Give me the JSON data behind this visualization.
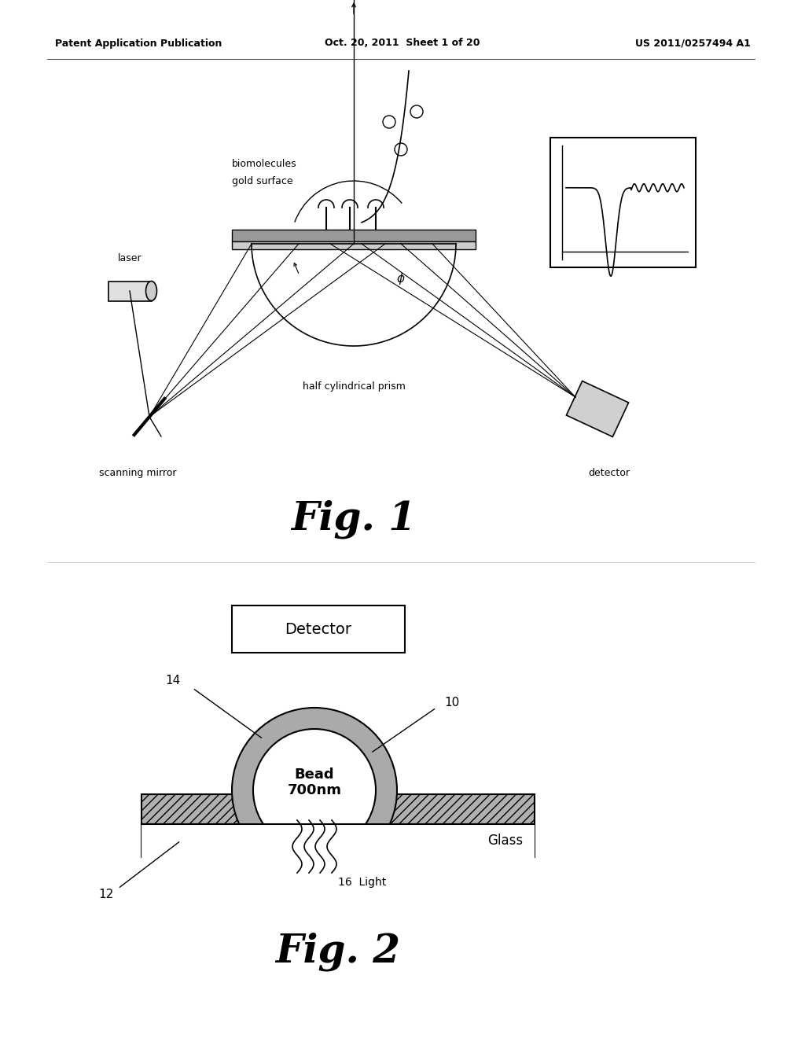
{
  "header_left": "Patent Application Publication",
  "header_center": "Oct. 20, 2011  Sheet 1 of 20",
  "header_right": "US 2011/0257494 A1",
  "fig1_label": "Fig. 1",
  "fig2_label": "Fig. 2",
  "background_color": "#ffffff",
  "text_color": "#000000",
  "fig2_detector_label": "Detector",
  "fig2_bead_label": "Bead\n700nm",
  "fig2_glass_label": "Glass",
  "fig2_light_label": "Light",
  "fig2_label_14": "14",
  "fig2_label_10": "10",
  "fig2_label_12": "12",
  "fig2_label_16": "16",
  "label_laser": "laser",
  "label_biomolecules": "biomolecules",
  "label_gold_surface": "gold surface",
  "label_half_cyl": "half cylindrical prism",
  "label_scanning_mirror": "scanning mirror",
  "label_detector": "detector",
  "label_phi": "φ"
}
